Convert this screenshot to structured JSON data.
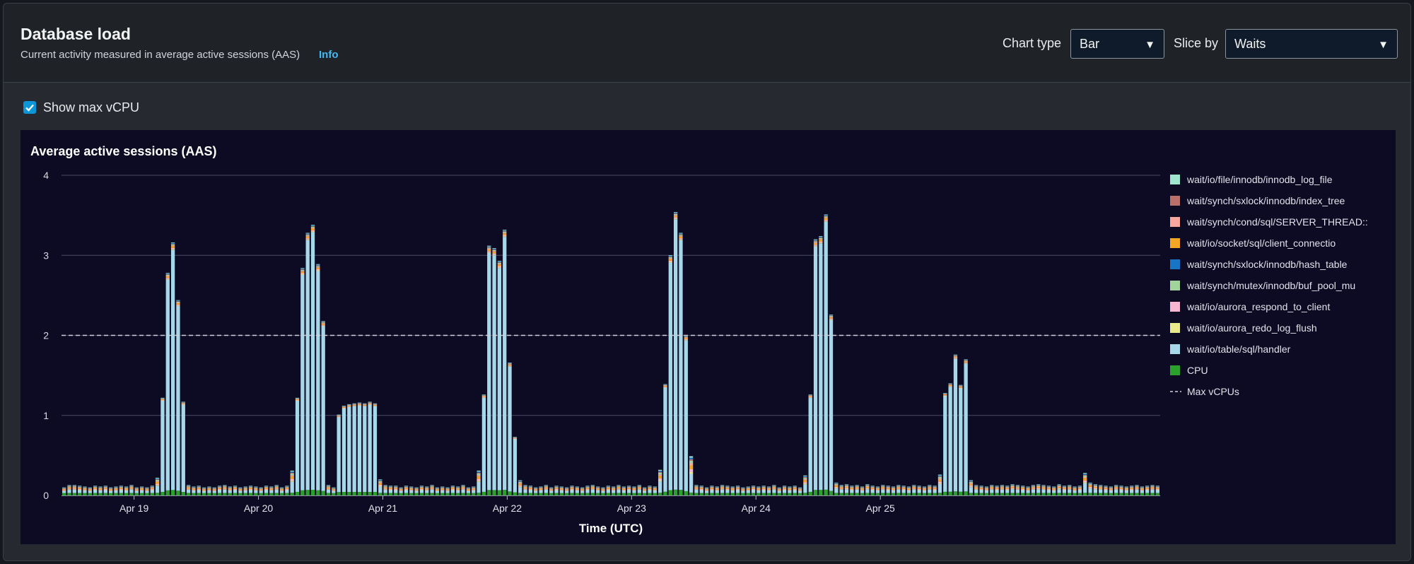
{
  "header": {
    "title": "Database load",
    "subtitle": "Current activity measured in average active sessions (AAS)",
    "info_label": "Info",
    "chart_type_label": "Chart type",
    "chart_type_value": "Bar",
    "slice_by_label": "Slice by",
    "slice_by_value": "Waits"
  },
  "options": {
    "show_max_vcpu_label": "Show max vCPU",
    "show_max_vcpu_checked": true
  },
  "colors": {
    "plot_bg": "#0d0b24",
    "grid": "#4a4a66",
    "accent_link": "#44b9f5",
    "checkbox": "#0a96d8"
  },
  "chart_data": {
    "type": "bar",
    "stacked": true,
    "title": "Average active sessions (AAS)",
    "xlabel": "Time (UTC)",
    "ylabel": "",
    "ylim": [
      0,
      4
    ],
    "yticks": [
      0,
      1,
      2,
      3,
      4
    ],
    "x_range": [
      "Apr 18 10:00",
      "Apr 25 10:00"
    ],
    "bar_interval_hours": 1,
    "xticks": [
      "Apr 19",
      "Apr 20",
      "Apr 21",
      "Apr 22",
      "Apr 23",
      "Apr 24",
      "Apr 25"
    ],
    "max_vcpu": 2,
    "max_vcpu_label": "Max vCPUs",
    "legend_position": "right",
    "legend": [
      {
        "name": "wait/io/file/innodb/innodb_log_file",
        "color": "#a0e6cf"
      },
      {
        "name": "wait/synch/sxlock/innodb/index_tree",
        "color": "#b9706a"
      },
      {
        "name": "wait/synch/cond/sql/SERVER_THREAD::",
        "color": "#f7a6a0"
      },
      {
        "name": "wait/io/socket/sql/client_connectio",
        "color": "#f5a623"
      },
      {
        "name": "wait/synch/sxlock/innodb/hash_table",
        "color": "#1874c4"
      },
      {
        "name": "wait/synch/mutex/innodb/buf_pool_mu",
        "color": "#a3d39c"
      },
      {
        "name": "wait/io/aurora_respond_to_client",
        "color": "#f7b6d2"
      },
      {
        "name": "wait/io/aurora_redo_log_flush",
        "color": "#e9e88a"
      },
      {
        "name": "wait/io/table/sql/handler",
        "color": "#a7d8ea"
      },
      {
        "name": "CPU",
        "color": "#2ca02c"
      }
    ],
    "series_note_cpu_baseline": 0.03,
    "totals": [
      0.1,
      0.13,
      0.13,
      0.12,
      0.11,
      0.1,
      0.12,
      0.11,
      0.12,
      0.1,
      0.11,
      0.12,
      0.11,
      0.13,
      0.1,
      0.11,
      0.1,
      0.12,
      0.22,
      1.22,
      2.78,
      3.16,
      2.44,
      1.17,
      0.13,
      0.11,
      0.12,
      0.1,
      0.11,
      0.1,
      0.12,
      0.13,
      0.11,
      0.12,
      0.1,
      0.11,
      0.12,
      0.11,
      0.1,
      0.12,
      0.11,
      0.13,
      0.1,
      0.12,
      0.31,
      1.22,
      2.84,
      3.28,
      3.38,
      2.89,
      2.18,
      0.13,
      0.1,
      1.01,
      1.12,
      1.14,
      1.15,
      1.16,
      1.15,
      1.17,
      1.15,
      0.2,
      0.13,
      0.12,
      0.12,
      0.1,
      0.12,
      0.11,
      0.1,
      0.12,
      0.11,
      0.13,
      0.1,
      0.11,
      0.1,
      0.12,
      0.11,
      0.13,
      0.1,
      0.11,
      0.31,
      1.26,
      3.12,
      3.09,
      2.93,
      3.32,
      1.66,
      0.73,
      0.19,
      0.13,
      0.12,
      0.1,
      0.11,
      0.13,
      0.1,
      0.12,
      0.11,
      0.1,
      0.12,
      0.11,
      0.1,
      0.12,
      0.13,
      0.11,
      0.1,
      0.12,
      0.11,
      0.13,
      0.11,
      0.12,
      0.11,
      0.13,
      0.1,
      0.12,
      0.11,
      0.32,
      1.39,
      3.0,
      3.54,
      3.28,
      2.0,
      0.49,
      0.13,
      0.12,
      0.1,
      0.12,
      0.11,
      0.13,
      0.12,
      0.11,
      0.12,
      0.1,
      0.11,
      0.12,
      0.11,
      0.12,
      0.11,
      0.13,
      0.1,
      0.12,
      0.11,
      0.12,
      0.1,
      0.25,
      1.26,
      3.2,
      3.24,
      3.51,
      2.26,
      0.16,
      0.13,
      0.14,
      0.12,
      0.13,
      0.11,
      0.14,
      0.12,
      0.11,
      0.13,
      0.12,
      0.11,
      0.13,
      0.12,
      0.11,
      0.13,
      0.12,
      0.11,
      0.13,
      0.12,
      0.26,
      1.28,
      1.4,
      1.76,
      1.38,
      1.7,
      0.19,
      0.13,
      0.12,
      0.11,
      0.13,
      0.12,
      0.13,
      0.12,
      0.14,
      0.13,
      0.12,
      0.11,
      0.13,
      0.14,
      0.13,
      0.12,
      0.11,
      0.14,
      0.12,
      0.13,
      0.11,
      0.12,
      0.28,
      0.16,
      0.14,
      0.13,
      0.12,
      0.11,
      0.13,
      0.12,
      0.11,
      0.12,
      0.13,
      0.11,
      0.12,
      0.13,
      0.12
    ]
  }
}
